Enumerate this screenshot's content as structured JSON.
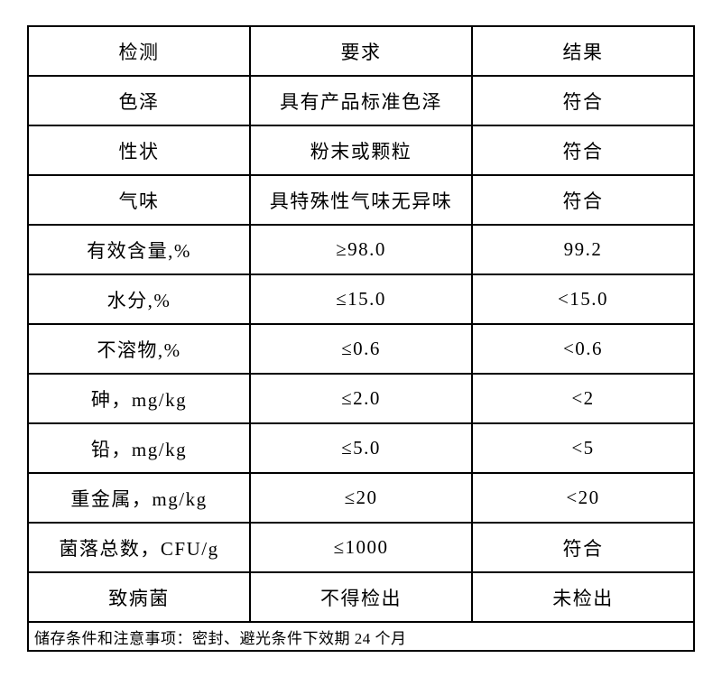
{
  "table": {
    "headers": [
      "检测",
      "要求",
      "结果"
    ],
    "rows": [
      {
        "item": "色泽",
        "requirement": "具有产品标准色泽",
        "result": "符合"
      },
      {
        "item": "性状",
        "requirement": "粉末或颗粒",
        "result": "符合"
      },
      {
        "item": "气味",
        "requirement": "具特殊性气味无异味",
        "result": "符合"
      },
      {
        "item": "有效含量,%",
        "requirement": "≥98.0",
        "result": "99.2"
      },
      {
        "item": "水分,%",
        "requirement": "≤15.0",
        "result": "<15.0"
      },
      {
        "item": "不溶物,%",
        "requirement": "≤0.6",
        "result": "<0.6"
      },
      {
        "item": "砷，mg/kg",
        "requirement": "≤2.0",
        "result": "<2"
      },
      {
        "item": "铅，mg/kg",
        "requirement": "≤5.0",
        "result": "<5"
      },
      {
        "item": "重金属，mg/kg",
        "requirement": "≤20",
        "result": "<20"
      },
      {
        "item": "菌落总数，CFU/g",
        "requirement": "≤1000",
        "result": "符合"
      },
      {
        "item": "致病菌",
        "requirement": "不得检出",
        "result": "未检出"
      }
    ],
    "footer_note": "储存条件和注意事项：密封、避光条件下效期 24 个月"
  }
}
